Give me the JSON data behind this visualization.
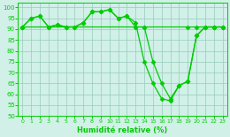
{
  "xlabel": "Humidité relative (%)",
  "line1_x": [
    0,
    1,
    2,
    3,
    4,
    5,
    6,
    7,
    8,
    9,
    10,
    11,
    12,
    13,
    14,
    19,
    20,
    21,
    22,
    23
  ],
  "line1_y": [
    91,
    95,
    96,
    91,
    92,
    91,
    91,
    93,
    98,
    98,
    99,
    95,
    96,
    91,
    91,
    91,
    91,
    91,
    91,
    91
  ],
  "line2_x": [
    0,
    1,
    2,
    3,
    4,
    5,
    6,
    7,
    8,
    9,
    10,
    11,
    12,
    13,
    14,
    15,
    16,
    17,
    18,
    19,
    20,
    21,
    22,
    23
  ],
  "line2_y": [
    91,
    95,
    96,
    91,
    92,
    91,
    91,
    93,
    98,
    98,
    99,
    95,
    96,
    93,
    75,
    65,
    58,
    57,
    64,
    66,
    87,
    91,
    91,
    91
  ],
  "line3_x": [
    0,
    14,
    15,
    16,
    17,
    18,
    19,
    20,
    21,
    22,
    23
  ],
  "line3_y": [
    91,
    91,
    75,
    65,
    58,
    64,
    66,
    87,
    91,
    91,
    91
  ],
  "ylim": [
    50,
    102
  ],
  "xlim": [
    -0.5,
    23.5
  ],
  "yticks": [
    50,
    55,
    60,
    65,
    70,
    75,
    80,
    85,
    90,
    95,
    100
  ],
  "xticks": [
    0,
    1,
    2,
    3,
    4,
    5,
    6,
    7,
    8,
    9,
    10,
    11,
    12,
    13,
    14,
    15,
    16,
    17,
    18,
    19,
    20,
    21,
    22,
    23
  ],
  "line_color": "#00cc00",
  "bg_color": "#d0f0e8",
  "grid_color": "#99ccbb",
  "marker": "D",
  "marker_size": 2.5,
  "linewidth": 0.9
}
